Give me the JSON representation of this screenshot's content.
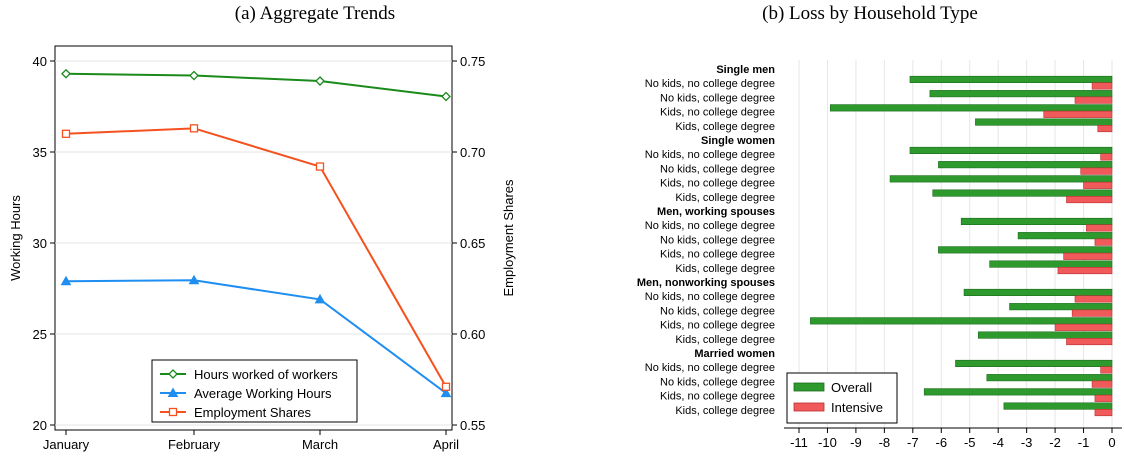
{
  "chart_data": [
    {
      "type": "line",
      "title": "(a) Aggregate Trends",
      "xlabel": "",
      "ylabel": "Working Hours",
      "y2label": "Employment Shares",
      "categories": [
        "January",
        "February",
        "March",
        "April"
      ],
      "ylim": [
        20,
        40
      ],
      "y2lim": [
        0.55,
        0.75
      ],
      "yticks": [
        20,
        25,
        30,
        35,
        40
      ],
      "y2ticks": [
        "0.55",
        "0.60",
        "0.65",
        "0.70",
        "0.75"
      ],
      "grid": true,
      "legend_position": "bottom-right",
      "series": [
        {
          "name": "Hours worked of workers",
          "axis": "left",
          "color": "#1a8a1a",
          "marker": "diamond",
          "values": [
            39.3,
            39.2,
            38.9,
            38.05
          ]
        },
        {
          "name": "Average Working Hours",
          "axis": "left",
          "color": "#1f8ef1",
          "marker": "triangle",
          "values": [
            27.9,
            27.95,
            26.9,
            21.75
          ]
        },
        {
          "name": "Employment Shares",
          "axis": "right",
          "color": "#f4511e",
          "marker": "square",
          "values": [
            0.71,
            0.713,
            0.692,
            0.571
          ]
        }
      ]
    },
    {
      "type": "bar",
      "orientation": "horizontal",
      "title": "(b) Loss by Household Type",
      "xlabel": "",
      "ylabel": "",
      "xlim": [
        -11,
        0
      ],
      "xticks": [
        -11,
        -10,
        -9,
        -8,
        -7,
        -6,
        -5,
        -4,
        -3,
        -2,
        -1,
        0
      ],
      "grid": true,
      "legend_position": "bottom-left",
      "series_names": [
        "Overall",
        "Intensive"
      ],
      "colors": {
        "Overall": "#2e9a2e",
        "Intensive": "#f05a5a"
      },
      "groups": [
        {
          "name": "Single men",
          "rows": [
            {
              "label": "No kids, no college degree",
              "overall": -7.1,
              "intensive": -0.7
            },
            {
              "label": "No kids, college degree",
              "overall": -6.4,
              "intensive": -1.3
            },
            {
              "label": "Kids, no college degree",
              "overall": -9.9,
              "intensive": -2.4
            },
            {
              "label": "Kids, college degree",
              "overall": -4.8,
              "intensive": -0.5
            }
          ]
        },
        {
          "name": "Single women",
          "rows": [
            {
              "label": "No kids, no college degree",
              "overall": -7.1,
              "intensive": -0.4
            },
            {
              "label": "No kids, college degree",
              "overall": -6.1,
              "intensive": -1.1
            },
            {
              "label": "Kids, no college degree",
              "overall": -7.8,
              "intensive": -1.0
            },
            {
              "label": "Kids, college degree",
              "overall": -6.3,
              "intensive": -1.6
            }
          ]
        },
        {
          "name": "Men, working spouses",
          "rows": [
            {
              "label": "No kids, no college degree",
              "overall": -5.3,
              "intensive": -0.9
            },
            {
              "label": "No kids, college degree",
              "overall": -3.3,
              "intensive": -0.6
            },
            {
              "label": "Kids, no college degree",
              "overall": -6.1,
              "intensive": -1.7
            },
            {
              "label": "Kids, college degree",
              "overall": -4.3,
              "intensive": -1.9
            }
          ]
        },
        {
          "name": "Men, nonworking spouses",
          "rows": [
            {
              "label": "No kids, no college degree",
              "overall": -5.2,
              "intensive": -1.3
            },
            {
              "label": "No kids, college degree",
              "overall": -3.6,
              "intensive": -1.4
            },
            {
              "label": "Kids, no college degree",
              "overall": -10.6,
              "intensive": -2.0
            },
            {
              "label": "Kids, college degree",
              "overall": -4.7,
              "intensive": -1.6
            }
          ]
        },
        {
          "name": "Married women",
          "rows": [
            {
              "label": "No kids, no college degree",
              "overall": -5.5,
              "intensive": -0.4
            },
            {
              "label": "No kids, college degree",
              "overall": -4.4,
              "intensive": -0.7
            },
            {
              "label": "Kids, no college degree",
              "overall": -6.6,
              "intensive": -0.6
            },
            {
              "label": "Kids, college degree",
              "overall": -3.8,
              "intensive": -0.6
            }
          ]
        }
      ]
    }
  ]
}
